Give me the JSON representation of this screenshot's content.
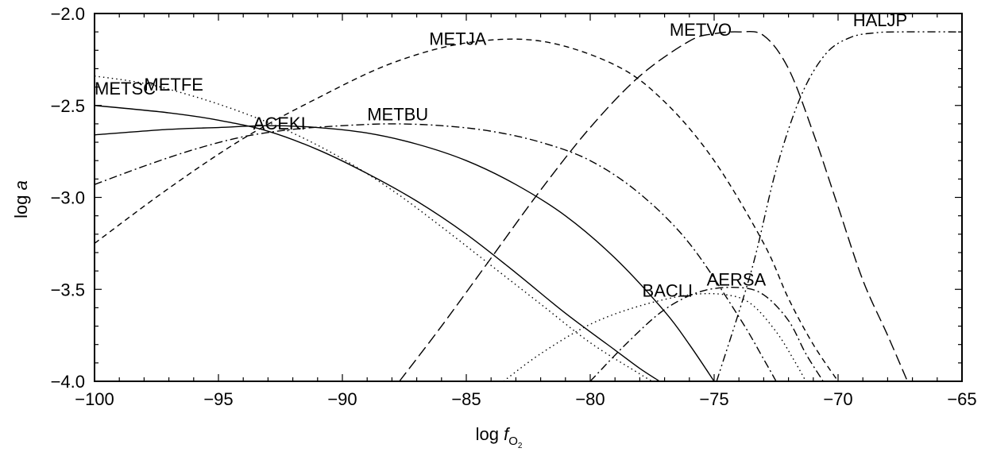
{
  "chart_data": {
    "type": "line",
    "title": "",
    "xlabel": {
      "main": "log",
      "italic": "f",
      "sub": "O",
      "subsub": "2"
    },
    "ylabel": {
      "main": "log",
      "italic": "a"
    },
    "xlim": [
      -100,
      -65
    ],
    "ylim": [
      -4.0,
      -2.0
    ],
    "xticks": [
      -100,
      -95,
      -90,
      -85,
      -80,
      -75,
      -70,
      -65
    ],
    "xtick_labels": [
      "−100",
      "−95",
      "−90",
      "−85",
      "−80",
      "−75",
      "−70",
      "−65"
    ],
    "yticks": [
      -4.0,
      -3.5,
      -3.0,
      -2.5,
      -2.0
    ],
    "ytick_labels": [
      "−4.0",
      "−3.5",
      "−3.0",
      "−2.5",
      "−2.0"
    ],
    "grid": false,
    "legend": "none",
    "series": [
      {
        "name": "METSC",
        "dash": "solid",
        "label_at": [
          -100,
          -2.44
        ],
        "x": [
          -100,
          -97,
          -95,
          -93,
          -91,
          -89,
          -87,
          -85,
          -83,
          -81,
          -79,
          -78,
          -77.2
        ],
        "y": [
          -2.5,
          -2.54,
          -2.58,
          -2.64,
          -2.74,
          -2.87,
          -3.02,
          -3.2,
          -3.41,
          -3.63,
          -3.83,
          -3.93,
          -4.0
        ]
      },
      {
        "name": "ACEKI",
        "dash": "solid",
        "label_at": [
          -93.6,
          -2.63
        ],
        "x": [
          -100,
          -97,
          -95,
          -93,
          -91,
          -89,
          -87,
          -85,
          -83,
          -81,
          -79,
          -77,
          -76,
          -75
        ],
        "y": [
          -2.66,
          -2.63,
          -2.62,
          -2.61,
          -2.62,
          -2.65,
          -2.71,
          -2.8,
          -2.93,
          -3.1,
          -3.33,
          -3.62,
          -3.8,
          -4.0
        ]
      },
      {
        "name": "METFE",
        "dash": "dot",
        "label_at": [
          -98,
          -2.42
        ],
        "x": [
          -100,
          -98,
          -96,
          -94,
          -92,
          -90,
          -88,
          -86,
          -84,
          -82,
          -80,
          -78,
          -77.5
        ],
        "y": [
          -2.34,
          -2.38,
          -2.45,
          -2.54,
          -2.65,
          -2.79,
          -2.96,
          -3.16,
          -3.37,
          -3.58,
          -3.79,
          -3.96,
          -4.0
        ]
      },
      {
        "name": "METBU",
        "dash": "dashdot",
        "label_at": [
          -89,
          -2.58
        ],
        "x": [
          -100,
          -98,
          -96,
          -94,
          -92,
          -90,
          -88,
          -86,
          -84,
          -82,
          -80,
          -78,
          -76,
          -74,
          -73,
          -72.5
        ],
        "y": [
          -2.93,
          -2.83,
          -2.74,
          -2.67,
          -2.63,
          -2.61,
          -2.6,
          -2.61,
          -2.64,
          -2.7,
          -2.8,
          -2.98,
          -3.25,
          -3.65,
          -3.88,
          -4.0
        ]
      },
      {
        "name": "METJA",
        "dash": "dash",
        "label_at": [
          -86.5,
          -2.17
        ],
        "x": [
          -100,
          -97,
          -94,
          -91,
          -88,
          -85,
          -82,
          -79,
          -77,
          -75,
          -73,
          -72,
          -71,
          -70
        ],
        "y": [
          -3.25,
          -2.95,
          -2.68,
          -2.46,
          -2.27,
          -2.16,
          -2.15,
          -2.28,
          -2.48,
          -2.8,
          -3.25,
          -3.55,
          -3.8,
          -4.0
        ]
      },
      {
        "name": "METVO",
        "dash": "longdash",
        "label_at": [
          -76.8,
          -2.12
        ],
        "x": [
          -87.7,
          -86,
          -84,
          -82,
          -80,
          -78,
          -76,
          -75,
          -74,
          -73,
          -72,
          -71,
          -70,
          -69,
          -68,
          -67.2
        ],
        "y": [
          -4.0,
          -3.7,
          -3.33,
          -2.96,
          -2.62,
          -2.34,
          -2.15,
          -2.11,
          -2.1,
          -2.12,
          -2.3,
          -2.65,
          -3.05,
          -3.45,
          -3.75,
          -4.0
        ]
      },
      {
        "name": "HALJP",
        "dash": "dashdotdot",
        "label_at": [
          -69.4,
          -2.07
        ],
        "x": [
          -74.9,
          -73.5,
          -72.5,
          -71.5,
          -70.5,
          -69.5,
          -68.5,
          -67.5,
          -65
        ],
        "y": [
          -4.0,
          -3.4,
          -2.85,
          -2.45,
          -2.22,
          -2.13,
          -2.105,
          -2.1,
          -2.1
        ]
      },
      {
        "name": "BACLI",
        "dash": "dot",
        "label_at": [
          -77.9,
          -3.54
        ],
        "x": [
          -83.5,
          -82,
          -80,
          -78,
          -76,
          -74.5,
          -73.5,
          -72.5,
          -71.8,
          -71.3
        ],
        "y": [
          -4.0,
          -3.85,
          -3.69,
          -3.59,
          -3.53,
          -3.53,
          -3.58,
          -3.73,
          -3.88,
          -4.0
        ]
      },
      {
        "name": "AERSA",
        "dash": "dashdot",
        "label_at": [
          -75.3,
          -3.48
        ],
        "x": [
          -80,
          -78.5,
          -77,
          -75.5,
          -74,
          -73,
          -72,
          -71.3,
          -70.6
        ],
        "y": [
          -4.0,
          -3.79,
          -3.61,
          -3.51,
          -3.49,
          -3.53,
          -3.67,
          -3.85,
          -4.0
        ]
      }
    ]
  }
}
